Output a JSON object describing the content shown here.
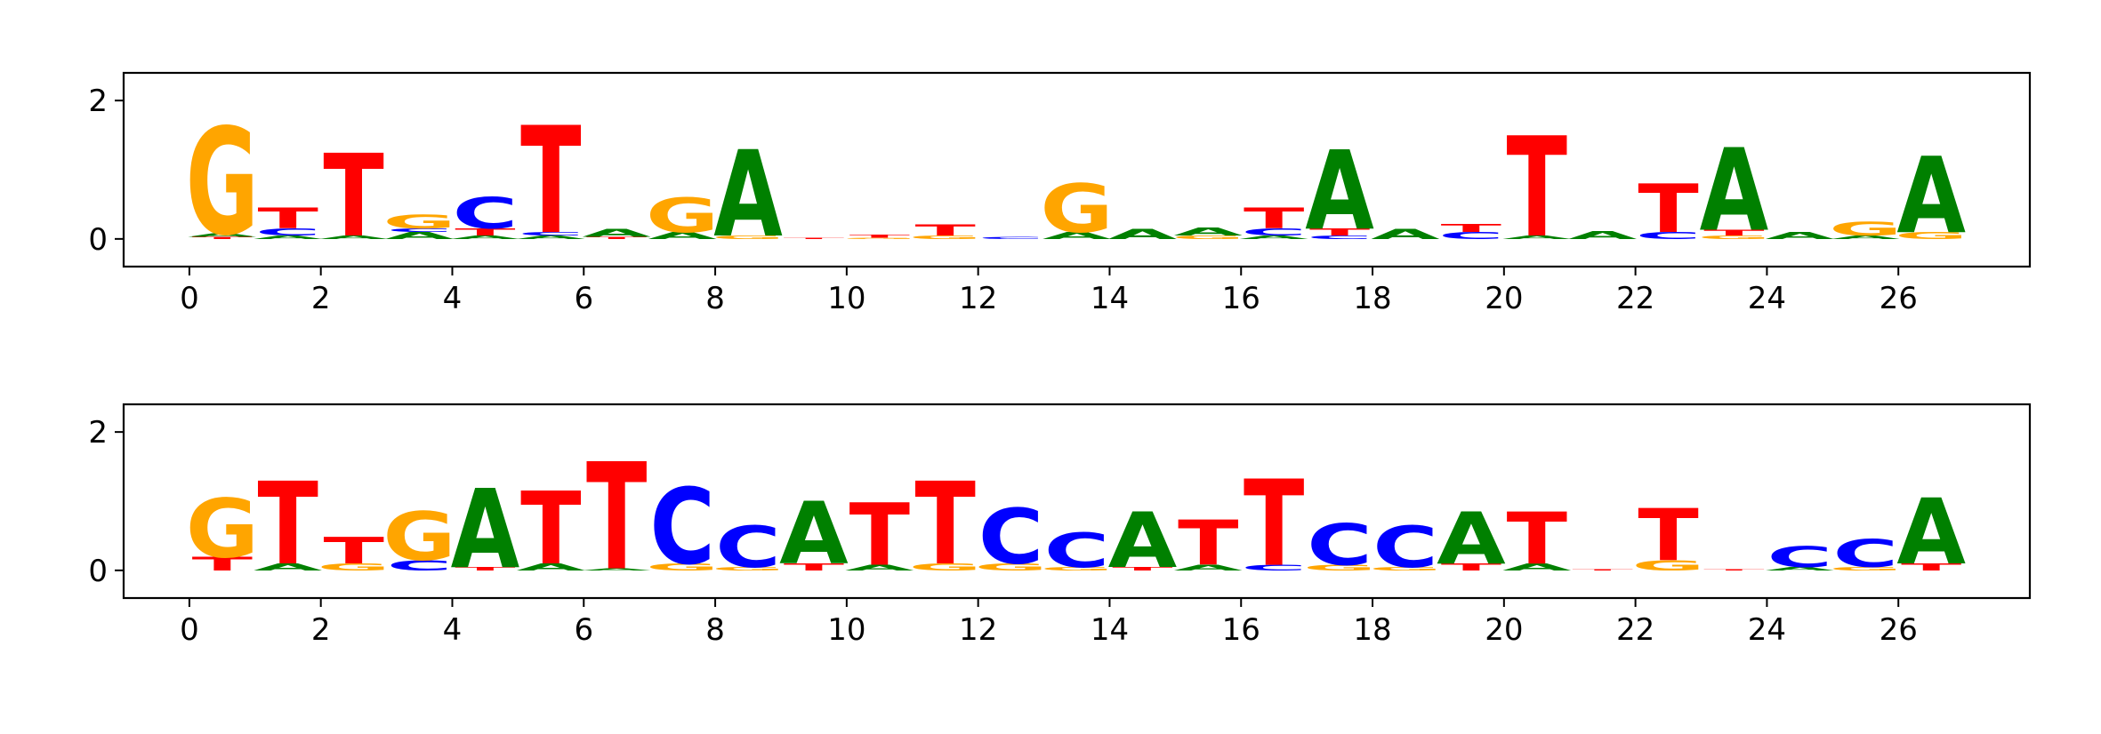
{
  "colors": {
    "A": "#008000",
    "C": "#0000ff",
    "G": "#ffa500",
    "T": "#ff0000",
    "axis": "#000000"
  },
  "chart_data": [
    {
      "type": "sequence-logo",
      "xlim": [
        -1,
        28
      ],
      "ylim": [
        -0.4,
        2.4
      ],
      "x_ticks": [
        0,
        2,
        4,
        6,
        8,
        10,
        12,
        14,
        16,
        18,
        20,
        22,
        24,
        26
      ],
      "y_ticks": [
        0,
        2
      ],
      "tick_labels_x": [
        "0",
        "2",
        "4",
        "6",
        "8",
        "10",
        "12",
        "14",
        "16",
        "18",
        "20",
        "22",
        "24",
        "26"
      ],
      "tick_labels_y": [
        "0",
        "2"
      ],
      "positions": [
        {
          "x": 0,
          "letters": [
            [
              "T",
              0.03
            ],
            [
              "A",
              0.05
            ],
            [
              "G",
              1.55
            ]
          ]
        },
        {
          "x": 1,
          "letters": [
            [
              "A",
              0.05
            ],
            [
              "C",
              0.1
            ],
            [
              "T",
              0.3
            ]
          ]
        },
        {
          "x": 2,
          "letters": [
            [
              "A",
              0.05
            ],
            [
              "T",
              1.2
            ]
          ]
        },
        {
          "x": 3,
          "letters": [
            [
              "A",
              0.1
            ],
            [
              "C",
              0.05
            ],
            [
              "G",
              0.2
            ]
          ]
        },
        {
          "x": 4,
          "letters": [
            [
              "A",
              0.05
            ],
            [
              "T",
              0.1
            ],
            [
              "C",
              0.45
            ]
          ]
        },
        {
          "x": 5,
          "letters": [
            [
              "A",
              0.05
            ],
            [
              "C",
              0.05
            ],
            [
              "T",
              1.55
            ]
          ]
        },
        {
          "x": 6,
          "letters": [
            [
              "T",
              0.03
            ],
            [
              "A",
              0.12
            ]
          ]
        },
        {
          "x": 7,
          "letters": [
            [
              "A",
              0.1
            ],
            [
              "G",
              0.5
            ]
          ]
        },
        {
          "x": 8,
          "letters": [
            [
              "G",
              0.05
            ],
            [
              "A",
              1.25
            ]
          ]
        },
        {
          "x": 9,
          "letters": [
            [
              "T",
              0.02
            ]
          ]
        },
        {
          "x": 10,
          "letters": [
            [
              "G",
              0.02
            ],
            [
              "T",
              0.04
            ]
          ]
        },
        {
          "x": 11,
          "letters": [
            [
              "G",
              0.05
            ],
            [
              "T",
              0.16
            ]
          ]
        },
        {
          "x": 12,
          "letters": [
            [
              "C",
              0.03
            ]
          ]
        },
        {
          "x": 13,
          "letters": [
            [
              "A",
              0.1
            ],
            [
              "G",
              0.7
            ]
          ]
        },
        {
          "x": 14,
          "letters": [
            [
              "A",
              0.15
            ]
          ]
        },
        {
          "x": 15,
          "letters": [
            [
              "G",
              0.05
            ],
            [
              "A",
              0.12
            ]
          ]
        },
        {
          "x": 16,
          "letters": [
            [
              "A",
              0.05
            ],
            [
              "C",
              0.1
            ],
            [
              "T",
              0.3
            ]
          ]
        },
        {
          "x": 17,
          "letters": [
            [
              "C",
              0.05
            ],
            [
              "T",
              0.1
            ],
            [
              "A",
              1.15
            ]
          ]
        },
        {
          "x": 18,
          "letters": [
            [
              "A",
              0.15
            ]
          ]
        },
        {
          "x": 19,
          "letters": [
            [
              "C",
              0.1
            ],
            [
              "T",
              0.12
            ]
          ]
        },
        {
          "x": 20,
          "letters": [
            [
              "A",
              0.05
            ],
            [
              "T",
              1.45
            ]
          ]
        },
        {
          "x": 21,
          "letters": [
            [
              "A",
              0.12
            ]
          ]
        },
        {
          "x": 22,
          "letters": [
            [
              "C",
              0.1
            ],
            [
              "T",
              0.7
            ]
          ]
        },
        {
          "x": 23,
          "letters": [
            [
              "G",
              0.05
            ],
            [
              "T",
              0.08
            ],
            [
              "A",
              1.2
            ]
          ]
        },
        {
          "x": 24,
          "letters": [
            [
              "A",
              0.1
            ]
          ]
        },
        {
          "x": 25,
          "letters": [
            [
              "A",
              0.05
            ],
            [
              "G",
              0.2
            ]
          ]
        },
        {
          "x": 26,
          "letters": [
            [
              "G",
              0.1
            ],
            [
              "A",
              1.1
            ]
          ]
        }
      ]
    },
    {
      "type": "sequence-logo",
      "xlim": [
        -1,
        28
      ],
      "ylim": [
        -0.4,
        2.4
      ],
      "x_ticks": [
        0,
        2,
        4,
        6,
        8,
        10,
        12,
        14,
        16,
        18,
        20,
        22,
        24,
        26
      ],
      "y_ticks": [
        0,
        2
      ],
      "tick_labels_x": [
        "0",
        "2",
        "4",
        "6",
        "8",
        "10",
        "12",
        "14",
        "16",
        "18",
        "20",
        "22",
        "24",
        "26"
      ],
      "tick_labels_y": [
        "0",
        "2"
      ],
      "positions": [
        {
          "x": 0,
          "letters": [
            [
              "T",
              0.2
            ],
            [
              "G",
              0.85
            ]
          ]
        },
        {
          "x": 1,
          "letters": [
            [
              "A",
              0.1
            ],
            [
              "T",
              1.2
            ]
          ]
        },
        {
          "x": 2,
          "letters": [
            [
              "G",
              0.1
            ],
            [
              "T",
              0.38
            ]
          ]
        },
        {
          "x": 3,
          "letters": [
            [
              "C",
              0.15
            ],
            [
              "G",
              0.7
            ]
          ]
        },
        {
          "x": 4,
          "letters": [
            [
              "T",
              0.05
            ],
            [
              "A",
              1.15
            ]
          ]
        },
        {
          "x": 5,
          "letters": [
            [
              "A",
              0.1
            ],
            [
              "T",
              1.05
            ]
          ]
        },
        {
          "x": 6,
          "letters": [
            [
              "A",
              0.03
            ],
            [
              "T",
              1.55
            ]
          ]
        },
        {
          "x": 7,
          "letters": [
            [
              "G",
              0.1
            ],
            [
              "C",
              1.1
            ]
          ]
        },
        {
          "x": 8,
          "letters": [
            [
              "G",
              0.05
            ],
            [
              "C",
              0.6
            ]
          ]
        },
        {
          "x": 9,
          "letters": [
            [
              "T",
              0.1
            ],
            [
              "A",
              0.9
            ]
          ]
        },
        {
          "x": 10,
          "letters": [
            [
              "A",
              0.08
            ],
            [
              "T",
              0.9
            ]
          ]
        },
        {
          "x": 11,
          "letters": [
            [
              "G",
              0.1
            ],
            [
              "T",
              1.2
            ]
          ]
        },
        {
          "x": 12,
          "letters": [
            [
              "G",
              0.1
            ],
            [
              "C",
              0.8
            ]
          ]
        },
        {
          "x": 13,
          "letters": [
            [
              "G",
              0.05
            ],
            [
              "C",
              0.5
            ]
          ]
        },
        {
          "x": 14,
          "letters": [
            [
              "T",
              0.05
            ],
            [
              "A",
              0.8
            ]
          ]
        },
        {
          "x": 15,
          "letters": [
            [
              "A",
              0.08
            ],
            [
              "T",
              0.65
            ]
          ]
        },
        {
          "x": 16,
          "letters": [
            [
              "C",
              0.08
            ],
            [
              "T",
              1.25
            ]
          ]
        },
        {
          "x": 17,
          "letters": [
            [
              "G",
              0.08
            ],
            [
              "C",
              0.6
            ]
          ]
        },
        {
          "x": 18,
          "letters": [
            [
              "G",
              0.05
            ],
            [
              "C",
              0.6
            ]
          ]
        },
        {
          "x": 19,
          "letters": [
            [
              "T",
              0.1
            ],
            [
              "A",
              0.75
            ]
          ]
        },
        {
          "x": 20,
          "letters": [
            [
              "A",
              0.1
            ],
            [
              "T",
              0.75
            ]
          ]
        },
        {
          "x": 21,
          "letters": [
            [
              "T",
              0.02
            ]
          ]
        },
        {
          "x": 22,
          "letters": [
            [
              "G",
              0.15
            ],
            [
              "T",
              0.75
            ]
          ]
        },
        {
          "x": 23,
          "letters": [
            [
              "T",
              0.02
            ]
          ]
        },
        {
          "x": 24,
          "letters": [
            [
              "A",
              0.05
            ],
            [
              "C",
              0.3
            ]
          ]
        },
        {
          "x": 25,
          "letters": [
            [
              "G",
              0.05
            ],
            [
              "C",
              0.4
            ]
          ]
        },
        {
          "x": 26,
          "letters": [
            [
              "T",
              0.1
            ],
            [
              "A",
              0.95
            ]
          ]
        }
      ]
    }
  ]
}
